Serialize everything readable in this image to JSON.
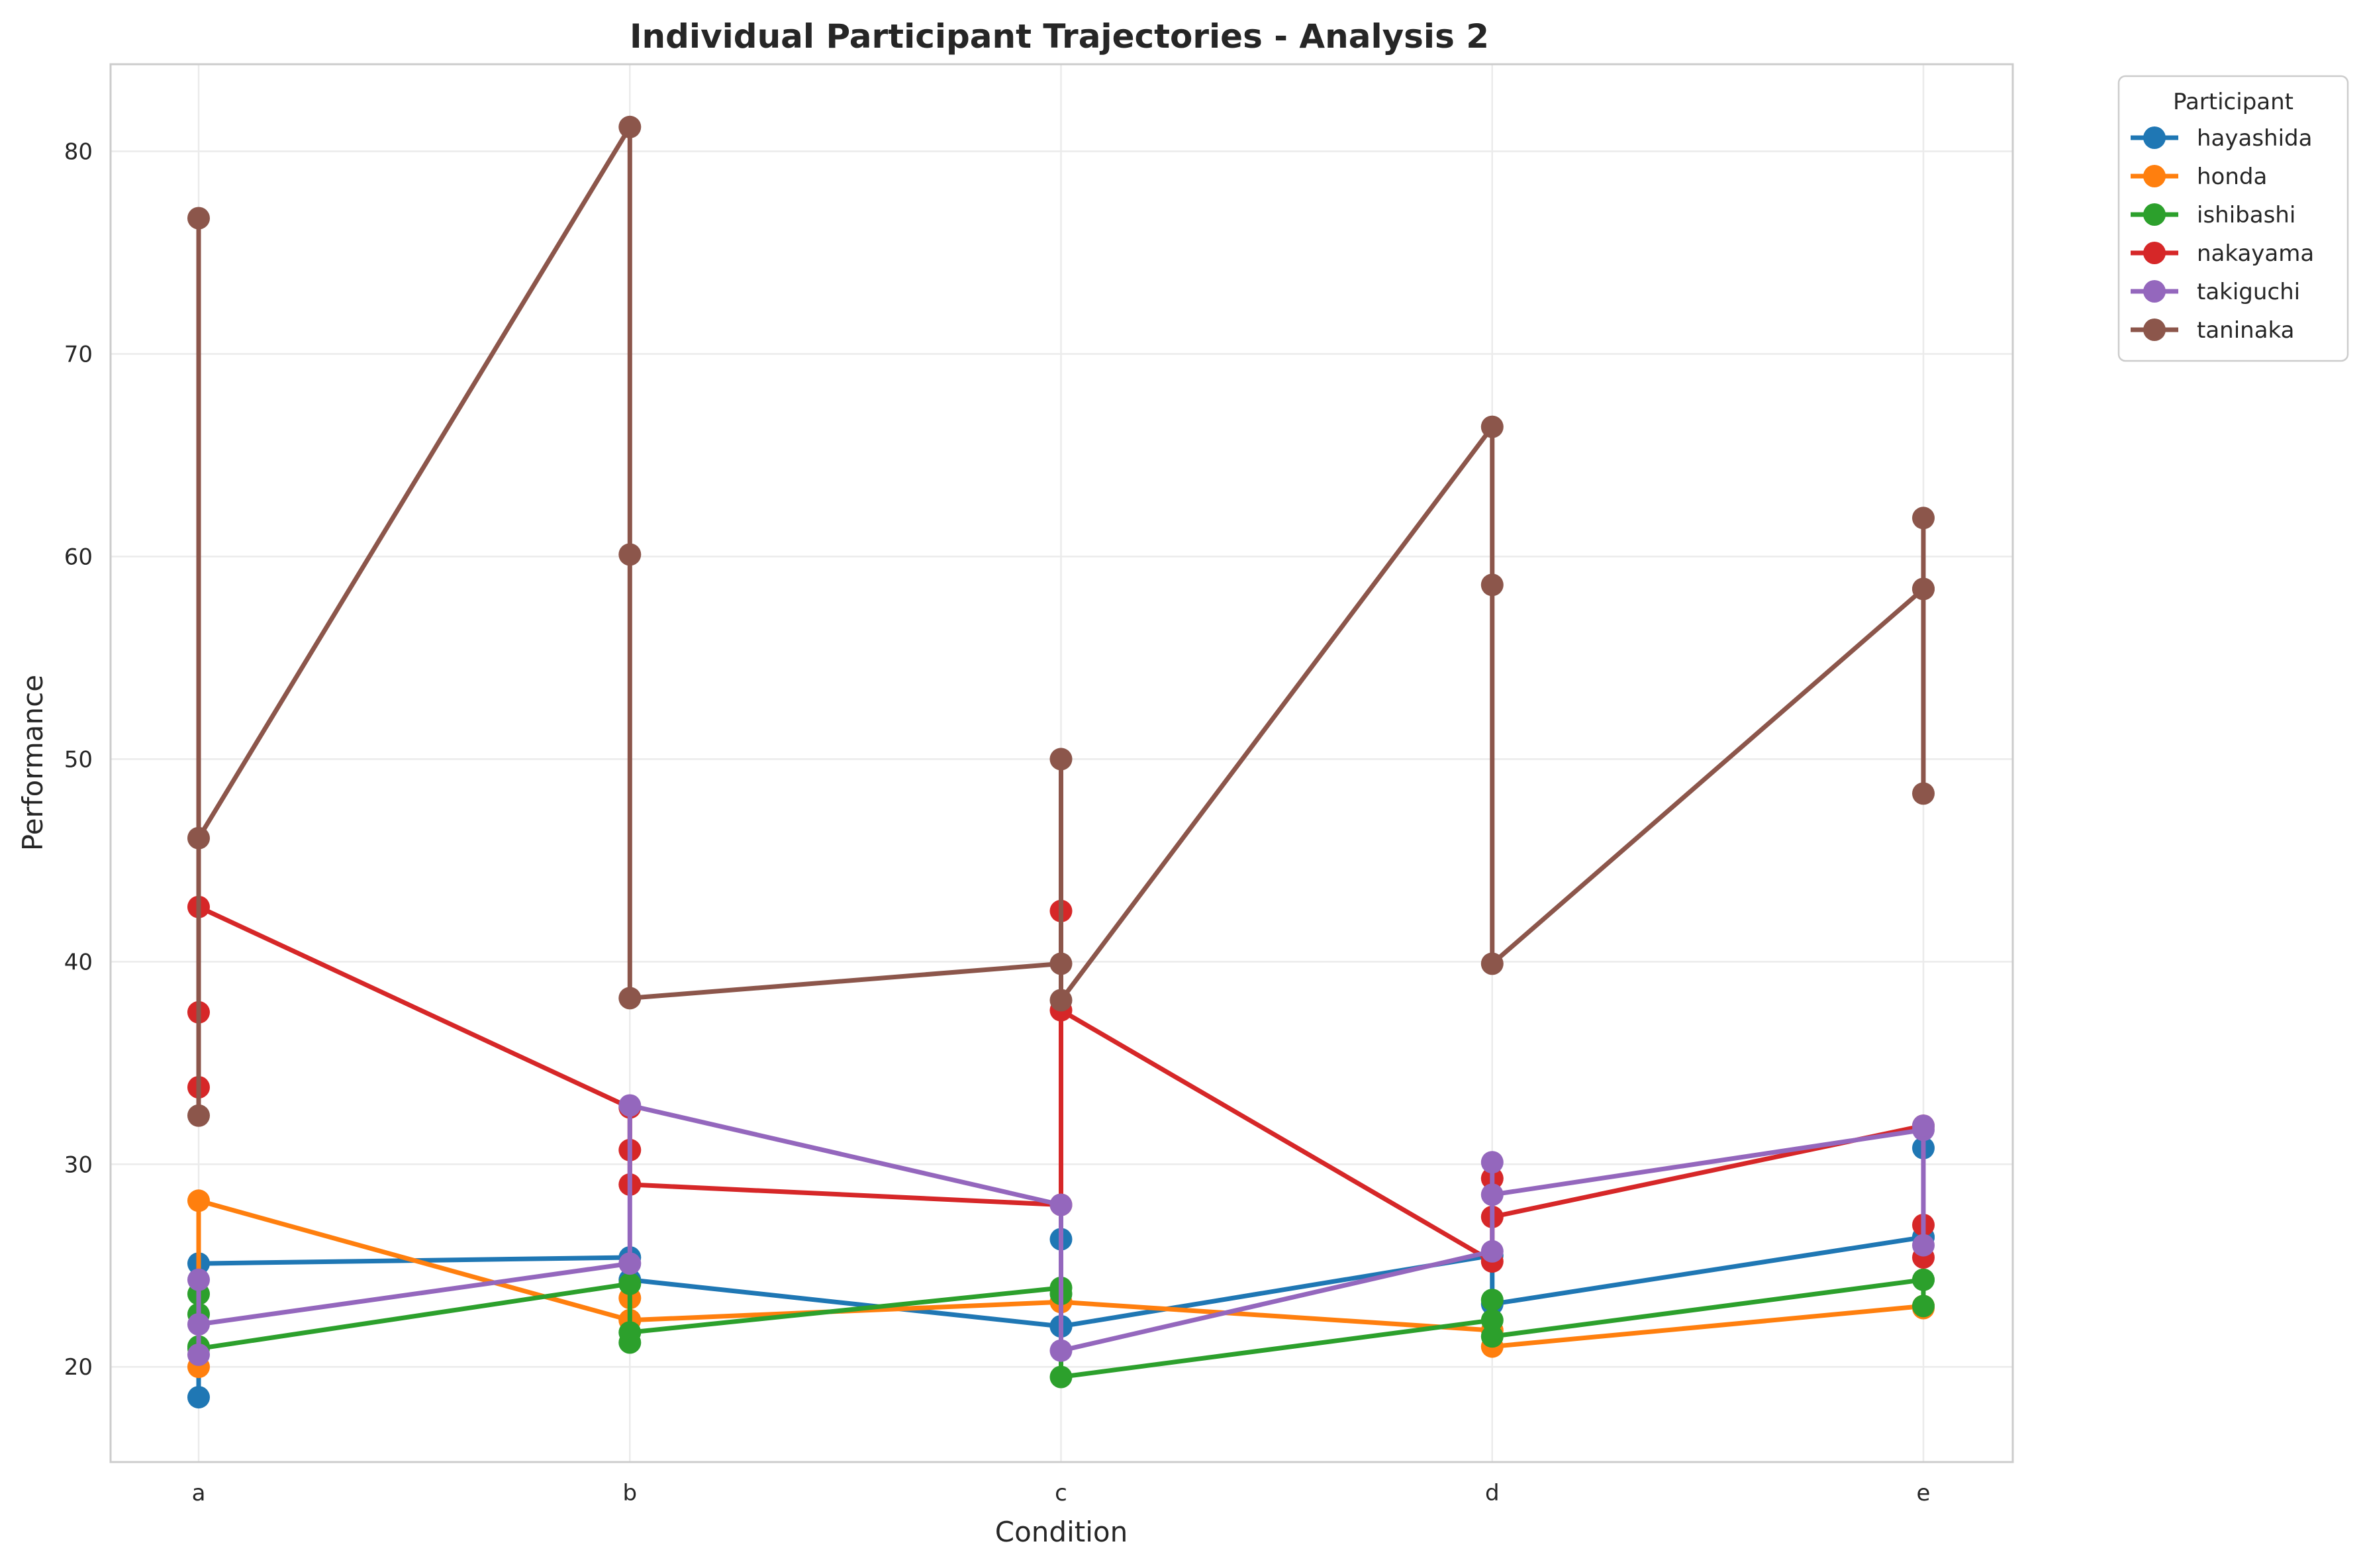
{
  "chart_data": {
    "type": "line",
    "title": "Individual Participant Trajectories - Analysis 2",
    "xlabel": "Condition",
    "ylabel": "Performance",
    "categories": [
      "a",
      "b",
      "c",
      "d",
      "e"
    ],
    "yticks": [
      20,
      30,
      40,
      50,
      60,
      70,
      80
    ],
    "ylim": [
      15.3,
      84.3
    ],
    "grid": true,
    "legend": {
      "title": "Participant",
      "placement": "outside-top-right"
    },
    "series": [
      {
        "name": "hayashida",
        "color": "#1f77b4",
        "points": [
          [
            "a",
            18.5
          ],
          [
            "a",
            25.1
          ],
          [
            "b",
            25.4
          ],
          [
            "b",
            24.3
          ],
          [
            "c",
            22.0
          ],
          [
            "c",
            26.3
          ],
          [
            "c",
            22.0
          ],
          [
            "d",
            25.5
          ],
          [
            "d",
            23.1
          ],
          [
            "e",
            26.4
          ],
          [
            "e",
            30.8
          ],
          [
            "e",
            26.4
          ]
        ]
      },
      {
        "name": "honda",
        "color": "#ff7f0e",
        "points": [
          [
            "a",
            20.0
          ],
          [
            "a",
            28.2
          ],
          [
            "b",
            22.3
          ],
          [
            "b",
            23.4
          ],
          [
            "b",
            22.3
          ],
          [
            "c",
            23.2
          ],
          [
            "c",
            23.2
          ],
          [
            "d",
            21.8
          ],
          [
            "d",
            21.0
          ],
          [
            "e",
            23.0
          ],
          [
            "e",
            22.9
          ],
          [
            "e",
            23.0
          ]
        ]
      },
      {
        "name": "ishibashi",
        "color": "#2ca02c",
        "points": [
          [
            "a",
            22.6
          ],
          [
            "a",
            23.6
          ],
          [
            "a",
            21.0
          ],
          [
            "a",
            20.9
          ],
          [
            "b",
            24.1
          ],
          [
            "b",
            21.2
          ],
          [
            "b",
            21.7
          ],
          [
            "c",
            23.9
          ],
          [
            "c",
            23.6
          ],
          [
            "c",
            19.5
          ],
          [
            "d",
            22.3
          ],
          [
            "d",
            23.3
          ],
          [
            "d",
            21.5
          ],
          [
            "e",
            24.3
          ],
          [
            "e",
            23.0
          ],
          [
            "e",
            24.3
          ]
        ]
      },
      {
        "name": "nakayama",
        "color": "#d62728",
        "points": [
          [
            "a",
            33.8
          ],
          [
            "a",
            37.5
          ],
          [
            "a",
            42.7
          ],
          [
            "b",
            32.8
          ],
          [
            "b",
            30.7
          ],
          [
            "b",
            29.0
          ],
          [
            "c",
            28.0
          ],
          [
            "c",
            42.5
          ],
          [
            "c",
            37.6
          ],
          [
            "d",
            25.2
          ],
          [
            "d",
            29.3
          ],
          [
            "d",
            27.4
          ],
          [
            "e",
            31.9
          ],
          [
            "e",
            25.4
          ],
          [
            "e",
            27.0
          ]
        ]
      },
      {
        "name": "takiguchi",
        "color": "#9467bd",
        "points": [
          [
            "a",
            24.3
          ],
          [
            "a",
            20.6
          ],
          [
            "a",
            22.1
          ],
          [
            "b",
            25.1
          ],
          [
            "b",
            32.9
          ],
          [
            "c",
            28.0
          ],
          [
            "c",
            20.8
          ],
          [
            "d",
            25.7
          ],
          [
            "d",
            30.1
          ],
          [
            "d",
            28.5
          ],
          [
            "e",
            31.7
          ],
          [
            "e",
            26.0
          ],
          [
            "e",
            31.9
          ]
        ]
      },
      {
        "name": "taninaka",
        "color": "#8c564b",
        "points": [
          [
            "a",
            32.4
          ],
          [
            "a",
            76.7
          ],
          [
            "a",
            46.1
          ],
          [
            "b",
            81.2
          ],
          [
            "b",
            60.1
          ],
          [
            "b",
            38.2
          ],
          [
            "c",
            39.9
          ],
          [
            "c",
            50.0
          ],
          [
            "c",
            38.1
          ],
          [
            "d",
            66.4
          ],
          [
            "d",
            58.6
          ],
          [
            "d",
            39.9
          ],
          [
            "e",
            58.4
          ],
          [
            "e",
            61.9
          ],
          [
            "e",
            48.3
          ],
          [
            "e",
            58.4
          ]
        ]
      }
    ]
  }
}
